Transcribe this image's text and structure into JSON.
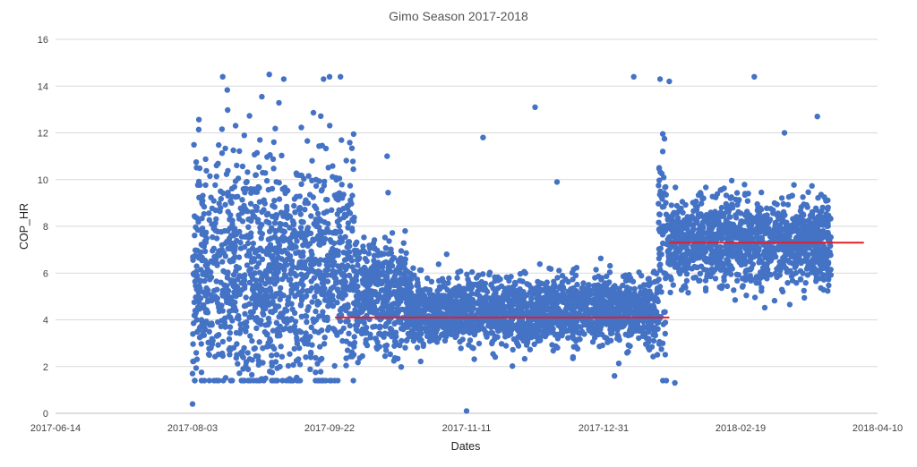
{
  "chart_data": {
    "type": "scatter",
    "title": "Gimo Season 2017-2018",
    "xlabel": "Dates",
    "ylabel": "COP_HR",
    "xlim": [
      "2017-06-14",
      "2018-04-10"
    ],
    "ylim": [
      0,
      16
    ],
    "x_ticks": [
      "2017-06-14",
      "2017-08-03",
      "2017-09-22",
      "2017-11-11",
      "2017-12-31",
      "2018-02-19",
      "2018-04-10"
    ],
    "y_ticks": [
      0,
      2,
      4,
      6,
      8,
      10,
      12,
      14,
      16
    ],
    "grid": "horizontal",
    "legend": "none",
    "colors": {
      "points": "#4472C4",
      "trend_lines": "#E0202A"
    },
    "series": [
      {
        "type": "scatter",
        "segments": [
          {
            "start": "2017-08-03",
            "end": "2017-10-01",
            "mean": 6.0,
            "spread": 2.6
          },
          {
            "start": "2017-10-01",
            "end": "2017-10-20",
            "mean": 5.0,
            "spread": 1.2
          },
          {
            "start": "2017-10-20",
            "end": "2017-11-15",
            "mean": 4.4,
            "spread": 0.7
          },
          {
            "start": "2017-11-15",
            "end": "2018-01-20",
            "mean": 4.4,
            "spread": 0.7
          },
          {
            "start": "2018-01-20",
            "end": "2018-01-23",
            "mean": 7.5,
            "spread": 3.0
          },
          {
            "start": "2018-01-23",
            "end": "2018-03-24",
            "mean": 7.3,
            "spread": 0.9
          }
        ],
        "notable_points": [
          {
            "x": "2017-08-03",
            "y": 0.4
          },
          {
            "x": "2017-08-03",
            "y": 1.7
          },
          {
            "x": "2017-08-14",
            "y": 14.4
          },
          {
            "x": "2017-08-31",
            "y": 14.5
          },
          {
            "x": "2017-09-22",
            "y": 14.4
          },
          {
            "x": "2017-09-26",
            "y": 14.4
          },
          {
            "x": "2017-10-13",
            "y": 11.0
          },
          {
            "x": "2017-11-11",
            "y": 0.1
          },
          {
            "x": "2017-11-17",
            "y": 11.8
          },
          {
            "x": "2017-12-06",
            "y": 13.1
          },
          {
            "x": "2017-12-14",
            "y": 9.9
          },
          {
            "x": "2018-01-11",
            "y": 14.4
          },
          {
            "x": "2018-01-04",
            "y": 1.6
          },
          {
            "x": "2018-01-24",
            "y": 14.2
          },
          {
            "x": "2018-01-26",
            "y": 1.3
          },
          {
            "x": "2018-02-24",
            "y": 14.4
          },
          {
            "x": "2018-03-07",
            "y": 12.0
          },
          {
            "x": "2018-03-19",
            "y": 12.7
          }
        ]
      },
      {
        "type": "line",
        "x": [
          "2017-09-24",
          "2018-01-24"
        ],
        "y": [
          4.1,
          4.1
        ]
      },
      {
        "type": "line",
        "x": [
          "2018-01-24",
          "2018-04-05"
        ],
        "y": [
          7.3,
          7.3
        ]
      }
    ]
  }
}
